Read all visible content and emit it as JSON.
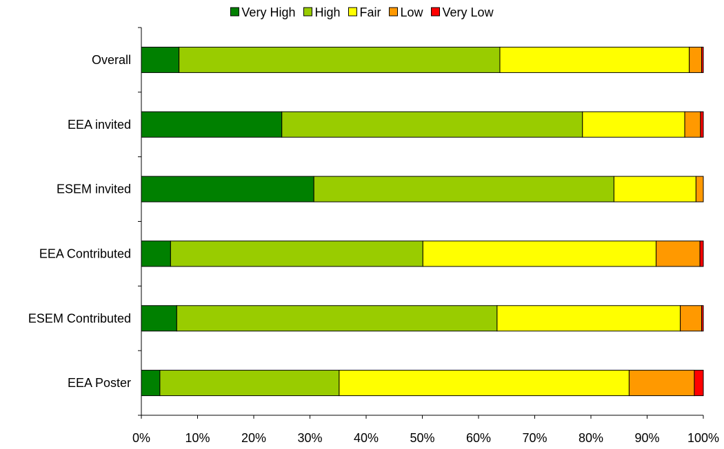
{
  "chart_data": {
    "type": "bar",
    "orientation": "horizontal",
    "stacked": "percent",
    "categories": [
      "Overall",
      "EEA invited",
      "ESEM invited",
      "EEA Contributed",
      "ESEM Contributed",
      "EEA Poster"
    ],
    "series": [
      {
        "name": "Very High",
        "color": "#008000",
        "values": [
          6.7,
          25.0,
          30.7,
          5.2,
          6.3,
          3.3
        ]
      },
      {
        "name": "High",
        "color": "#99CC00",
        "values": [
          57.1,
          53.5,
          53.4,
          44.9,
          57.0,
          31.9
        ]
      },
      {
        "name": "Fair",
        "color": "#FFFF00",
        "values": [
          33.7,
          18.2,
          14.6,
          41.5,
          32.6,
          51.6
        ]
      },
      {
        "name": "Low",
        "color": "#FF9900",
        "values": [
          2.2,
          2.8,
          1.3,
          7.8,
          3.8,
          11.6
        ]
      },
      {
        "name": "Very Low",
        "color": "#FF0000",
        "values": [
          0.3,
          0.5,
          0.0,
          0.6,
          0.3,
          1.6
        ]
      }
    ],
    "xlim": [
      0,
      100
    ],
    "xticks": [
      "0%",
      "10%",
      "20%",
      "30%",
      "40%",
      "50%",
      "60%",
      "70%",
      "80%",
      "90%",
      "100%"
    ],
    "grid": false,
    "legend": "top"
  }
}
